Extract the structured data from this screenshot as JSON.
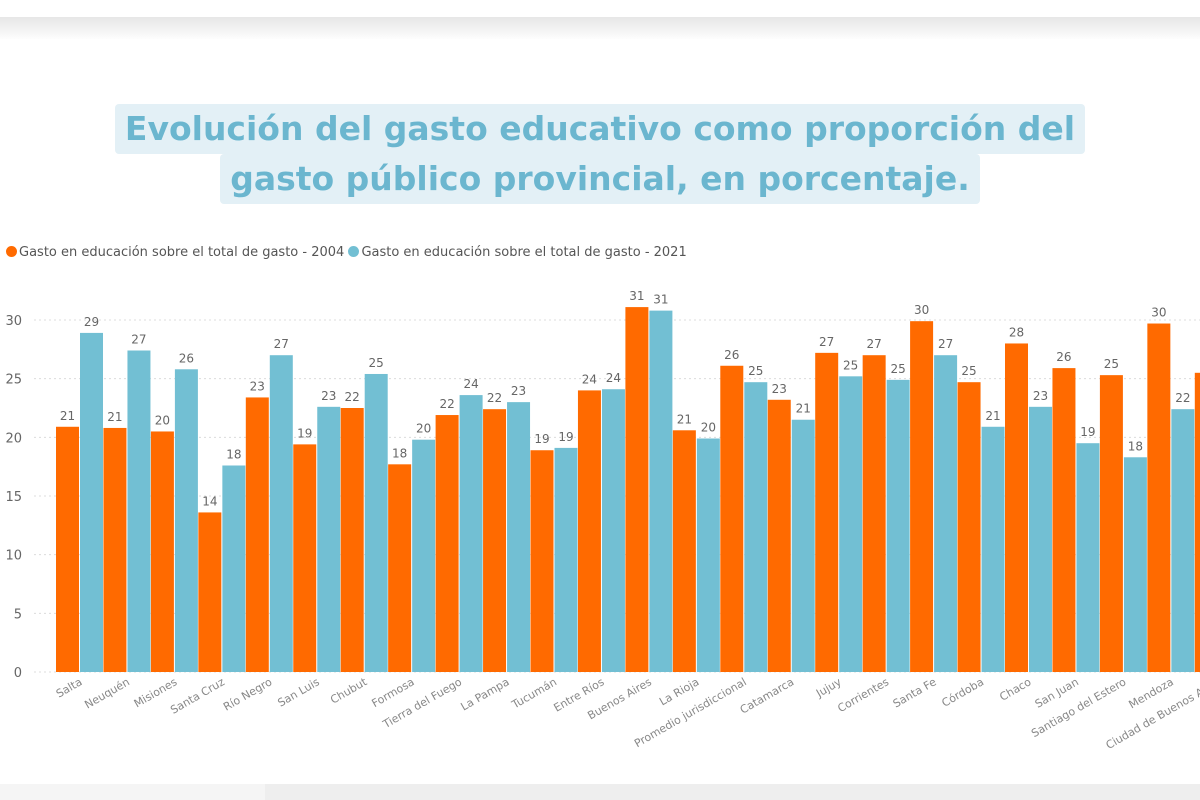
{
  "chart_data": {
    "type": "bar",
    "title": "Evolución del gasto educativo como proporción del gasto público provincial, en porcentaje.",
    "title_lines": [
      "Evolución del gasto educativo como proporción del",
      "gasto público provincial, en porcentaje."
    ],
    "xlabel": "",
    "ylabel": "",
    "ylim": [
      0,
      30
    ],
    "yticks": [
      "0",
      "5",
      "10",
      "15",
      "20",
      "25",
      "30"
    ],
    "grid": true,
    "legend_position": "top-left",
    "categories": [
      "Salta",
      "Neuquén",
      "Misiones",
      "Santa Cruz",
      "Río Negro",
      "San Luis",
      "Chubut",
      "Formosa",
      "Tierra del Fuego",
      "La Pampa",
      "Tucumán",
      "Entre Ríos",
      "Buenos Aires",
      "La Rioja",
      "Promedio jurisdiccional",
      "Catamarca",
      "Jujuy",
      "Corrientes",
      "Santa Fe",
      "Córdoba",
      "Chaco",
      "San Juan",
      "Santiago del Estero",
      "Mendoza",
      "Ciudad de Buenos Aires"
    ],
    "series": [
      {
        "name": "Gasto en educación sobre el total de gasto - 2004",
        "color": "#ff6a00",
        "values": [
          20.9,
          20.8,
          20.5,
          13.6,
          23.4,
          19.4,
          22.5,
          17.7,
          21.9,
          22.4,
          18.9,
          24.0,
          31.1,
          20.6,
          26.1,
          23.2,
          27.2,
          27.0,
          29.9,
          24.7,
          28.0,
          25.9,
          25.3,
          29.7,
          25.5
        ],
        "labels": [
          "21",
          "21",
          "20",
          "14",
          "23",
          "19",
          "22",
          "18",
          "22",
          "22",
          "19",
          "24",
          "31",
          "21",
          "26",
          "23",
          "27",
          "27",
          "30",
          "25",
          "28",
          "26",
          "25",
          "30",
          ""
        ]
      },
      {
        "name": "Gasto en educación sobre el total de gasto - 2021",
        "color": "#72bfd3",
        "values": [
          28.9,
          27.4,
          25.8,
          17.6,
          27.0,
          22.6,
          25.4,
          19.8,
          23.6,
          23.0,
          19.1,
          24.1,
          30.8,
          19.9,
          24.7,
          21.5,
          25.2,
          24.9,
          27.0,
          20.9,
          22.6,
          19.5,
          18.3,
          22.4,
          null
        ],
        "labels": [
          "29",
          "27",
          "26",
          "18",
          "27",
          "23",
          "25",
          "20",
          "24",
          "23",
          "19",
          "24",
          "31",
          "20",
          "25",
          "21",
          "25",
          "25",
          "27",
          "21",
          "23",
          "19",
          "18",
          "22",
          ""
        ]
      }
    ]
  },
  "legend": {
    "items": [
      {
        "label": "Gasto en educación sobre el total de gasto - 2004",
        "color": "#ff6a00"
      },
      {
        "label": "Gasto en educación sobre el total de gasto - 2021",
        "color": "#72bfd3"
      }
    ]
  }
}
